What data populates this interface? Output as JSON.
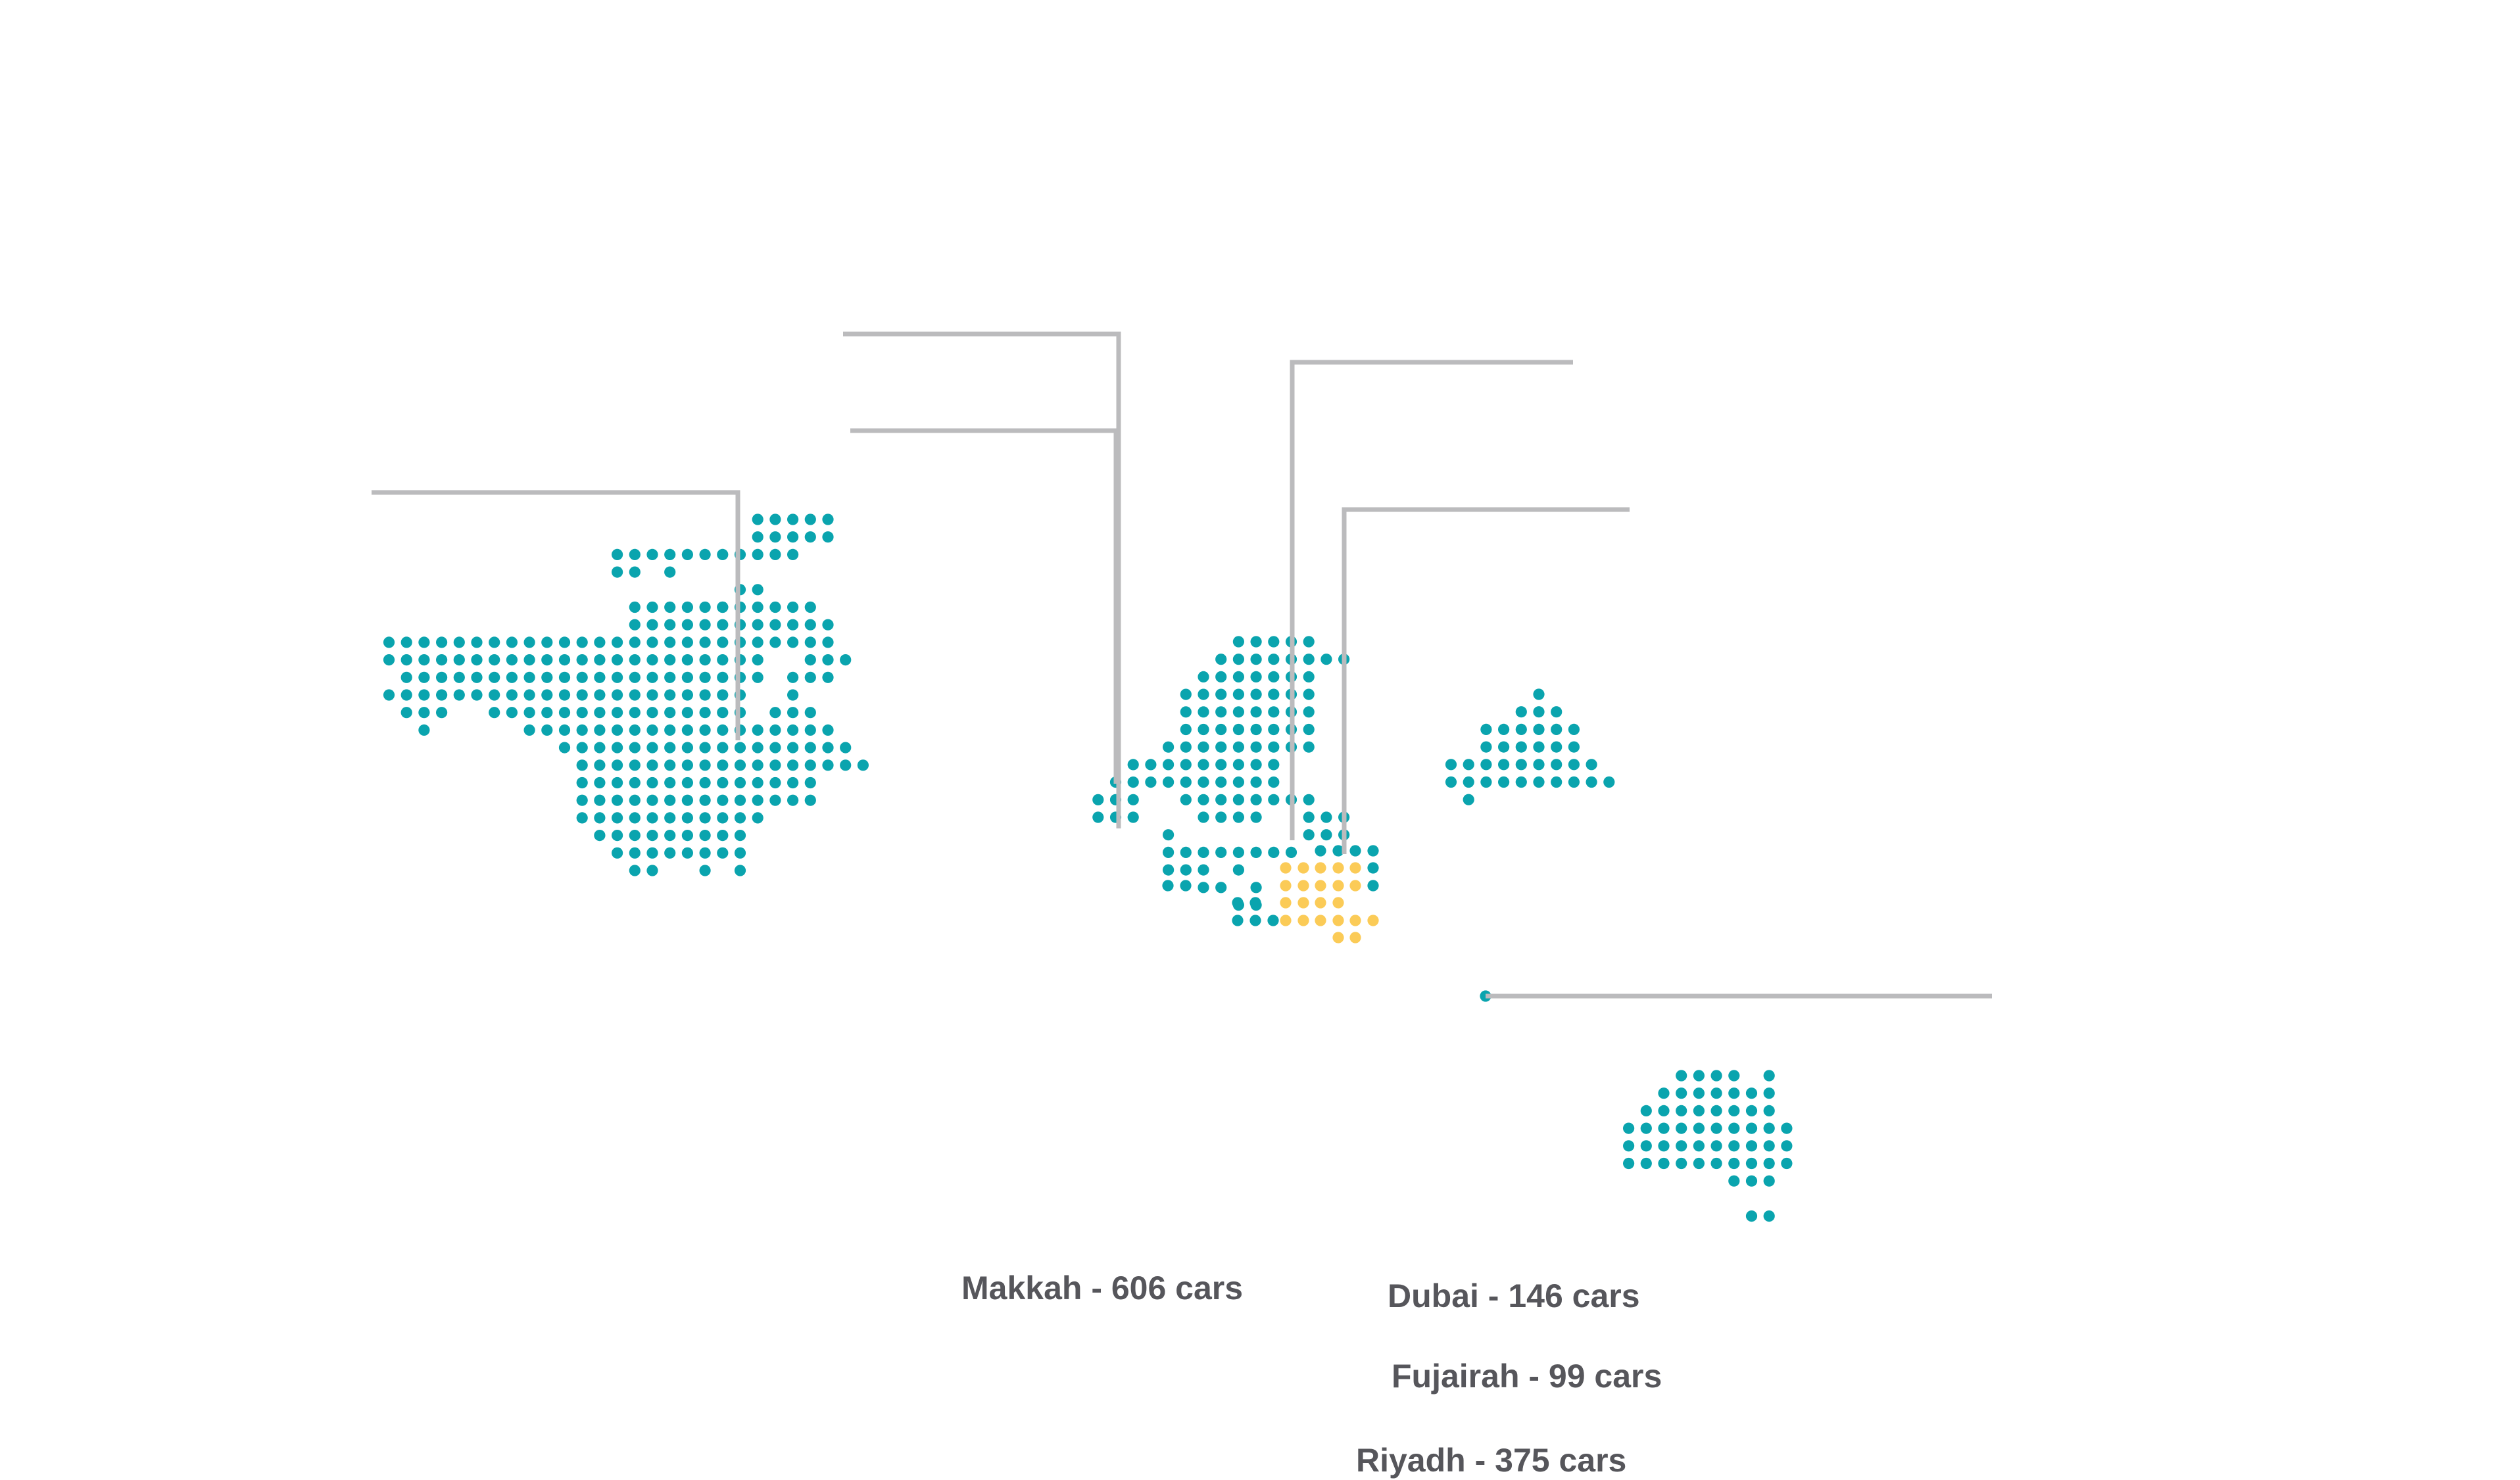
{
  "colors": {
    "land": "#0aa4ae",
    "highlight": "#fbcb57",
    "leader_line": "#bbbbbd",
    "label_text": "#56565b"
  },
  "labels": {
    "makkah": "Makkah - 606 cars",
    "dubai": "Dubai - 146 cars",
    "fujairah": "Fujairah - 99 cars",
    "riyadh": "Riyadh - 375 cars"
  },
  "markers": [
    {
      "id": "makkah",
      "name": "Makkah",
      "cars": 606
    },
    {
      "id": "dubai",
      "name": "Dubai",
      "cars": 146
    },
    {
      "id": "fujairah",
      "name": "Fujairah",
      "cars": 99
    },
    {
      "id": "riyadh",
      "name": "Riyadh",
      "cars": 375
    }
  ]
}
